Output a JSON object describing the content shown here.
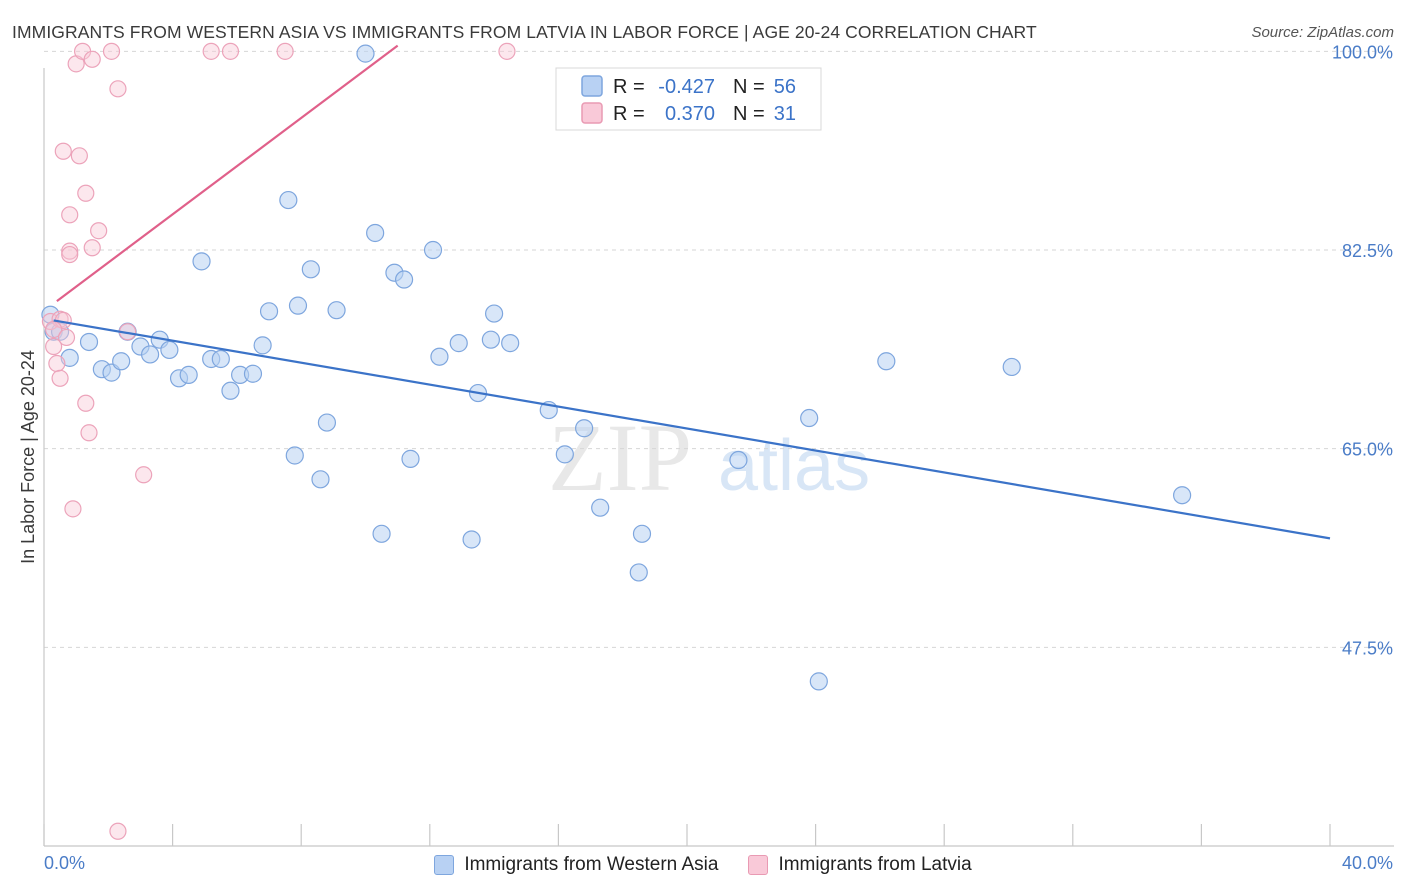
{
  "title": "IMMIGRANTS FROM WESTERN ASIA VS IMMIGRANTS FROM LATVIA IN LABOR FORCE | AGE 20-24 CORRELATION CHART",
  "source": "Source: ZipAtlas.com",
  "watermark": {
    "zip": "ZIP",
    "atlas": "atlas"
  },
  "chart_data": {
    "type": "scatter",
    "ylabel": "In Labor Force | Age 20-24",
    "xlim": [
      0,
      40
    ],
    "ylim": [
      30,
      101
    ],
    "x_tick_labels": [
      "0.0%",
      "40.0%"
    ],
    "y_ticks": [
      47.5,
      65.0,
      82.5,
      100.0
    ],
    "y_tick_labels": [
      "47.5%",
      "65.0%",
      "82.5%",
      "100.0%"
    ],
    "grid": "horizontal dashed",
    "colors": {
      "blue": "#3b73c8",
      "blue_fill": "#b8d1f3",
      "pink": "#e0608a",
      "pink_fill": "#f9c9d8"
    },
    "stats": [
      {
        "series": "Immigrants from Western Asia",
        "r_label": "R =",
        "r": "-0.427",
        "n_label": "N =",
        "n": "56"
      },
      {
        "series": "Immigrants from Latvia",
        "r_label": "R =",
        "r": "0.370",
        "n_label": "N =",
        "n": "31"
      }
    ],
    "series": [
      {
        "name": "Immigrants from Western Asia",
        "color": "#3b73c8",
        "trend": {
          "x": [
            0.3,
            40.0
          ],
          "y": [
            76.3,
            57.1
          ]
        },
        "points": [
          {
            "x": 0.2,
            "y": 76.8
          },
          {
            "x": 0.3,
            "y": 75.3
          },
          {
            "x": 0.8,
            "y": 73.0
          },
          {
            "x": 1.4,
            "y": 74.4
          },
          {
            "x": 1.8,
            "y": 72.0
          },
          {
            "x": 2.1,
            "y": 71.7
          },
          {
            "x": 2.4,
            "y": 72.7
          },
          {
            "x": 2.6,
            "y": 75.3
          },
          {
            "x": 3.0,
            "y": 74.0
          },
          {
            "x": 3.3,
            "y": 73.3
          },
          {
            "x": 3.6,
            "y": 74.6
          },
          {
            "x": 3.9,
            "y": 73.7
          },
          {
            "x": 4.2,
            "y": 71.2
          },
          {
            "x": 4.5,
            "y": 71.5
          },
          {
            "x": 4.9,
            "y": 81.5
          },
          {
            "x": 5.2,
            "y": 72.9
          },
          {
            "x": 5.5,
            "y": 72.9
          },
          {
            "x": 5.8,
            "y": 70.1
          },
          {
            "x": 6.1,
            "y": 71.5
          },
          {
            "x": 6.5,
            "y": 71.6
          },
          {
            "x": 6.8,
            "y": 74.1
          },
          {
            "x": 7.0,
            "y": 77.1
          },
          {
            "x": 7.6,
            "y": 86.9
          },
          {
            "x": 7.8,
            "y": 64.4
          },
          {
            "x": 7.9,
            "y": 77.6
          },
          {
            "x": 8.3,
            "y": 80.8
          },
          {
            "x": 8.6,
            "y": 62.3
          },
          {
            "x": 8.8,
            "y": 67.3
          },
          {
            "x": 9.1,
            "y": 77.2
          },
          {
            "x": 10.0,
            "y": 99.8
          },
          {
            "x": 10.3,
            "y": 84.0
          },
          {
            "x": 10.5,
            "y": 57.5
          },
          {
            "x": 10.9,
            "y": 80.5
          },
          {
            "x": 11.2,
            "y": 79.9
          },
          {
            "x": 11.4,
            "y": 64.1
          },
          {
            "x": 12.1,
            "y": 82.5
          },
          {
            "x": 12.3,
            "y": 73.1
          },
          {
            "x": 12.9,
            "y": 74.3
          },
          {
            "x": 13.3,
            "y": 57.0
          },
          {
            "x": 13.5,
            "y": 69.9
          },
          {
            "x": 13.9,
            "y": 74.6
          },
          {
            "x": 14.0,
            "y": 76.9
          },
          {
            "x": 14.5,
            "y": 74.3
          },
          {
            "x": 15.7,
            "y": 68.4
          },
          {
            "x": 16.2,
            "y": 64.5
          },
          {
            "x": 16.8,
            "y": 66.8
          },
          {
            "x": 17.3,
            "y": 59.8
          },
          {
            "x": 18.6,
            "y": 57.5
          },
          {
            "x": 18.5,
            "y": 54.1
          },
          {
            "x": 21.6,
            "y": 64.0
          },
          {
            "x": 23.8,
            "y": 67.7
          },
          {
            "x": 24.1,
            "y": 44.5
          },
          {
            "x": 26.2,
            "y": 72.7
          },
          {
            "x": 30.1,
            "y": 72.2
          },
          {
            "x": 35.4,
            "y": 60.9
          },
          {
            "x": 0.5,
            "y": 75.3
          }
        ]
      },
      {
        "name": "Immigrants from Latvia",
        "color": "#e0608a",
        "trend": {
          "x": [
            0.4,
            11.0
          ],
          "y": [
            78.0,
            100.5
          ]
        },
        "points": [
          {
            "x": 0.2,
            "y": 76.2
          },
          {
            "x": 0.3,
            "y": 74.0
          },
          {
            "x": 0.4,
            "y": 72.5
          },
          {
            "x": 0.5,
            "y": 76.4
          },
          {
            "x": 0.5,
            "y": 71.2
          },
          {
            "x": 0.6,
            "y": 76.3
          },
          {
            "x": 0.6,
            "y": 91.2
          },
          {
            "x": 0.8,
            "y": 82.4
          },
          {
            "x": 0.8,
            "y": 82.1
          },
          {
            "x": 0.8,
            "y": 85.6
          },
          {
            "x": 0.9,
            "y": 59.7
          },
          {
            "x": 1.0,
            "y": 98.9
          },
          {
            "x": 1.1,
            "y": 90.8
          },
          {
            "x": 1.2,
            "y": 100.0
          },
          {
            "x": 1.3,
            "y": 87.5
          },
          {
            "x": 1.3,
            "y": 69.0
          },
          {
            "x": 1.4,
            "y": 66.4
          },
          {
            "x": 1.5,
            "y": 99.3
          },
          {
            "x": 1.5,
            "y": 82.7
          },
          {
            "x": 1.7,
            "y": 84.2
          },
          {
            "x": 2.1,
            "y": 100.0
          },
          {
            "x": 2.3,
            "y": 96.7
          },
          {
            "x": 2.6,
            "y": 75.3
          },
          {
            "x": 3.1,
            "y": 62.7
          },
          {
            "x": 5.2,
            "y": 100.0
          },
          {
            "x": 5.8,
            "y": 100.0
          },
          {
            "x": 7.5,
            "y": 100.0
          },
          {
            "x": 14.4,
            "y": 100.0
          },
          {
            "x": 2.3,
            "y": 31.3
          },
          {
            "x": 0.3,
            "y": 75.5
          },
          {
            "x": 0.7,
            "y": 74.8
          }
        ]
      }
    ]
  },
  "legend": {
    "items": [
      {
        "label": "Immigrants from Western Asia"
      },
      {
        "label": "Immigrants from Latvia"
      }
    ]
  }
}
